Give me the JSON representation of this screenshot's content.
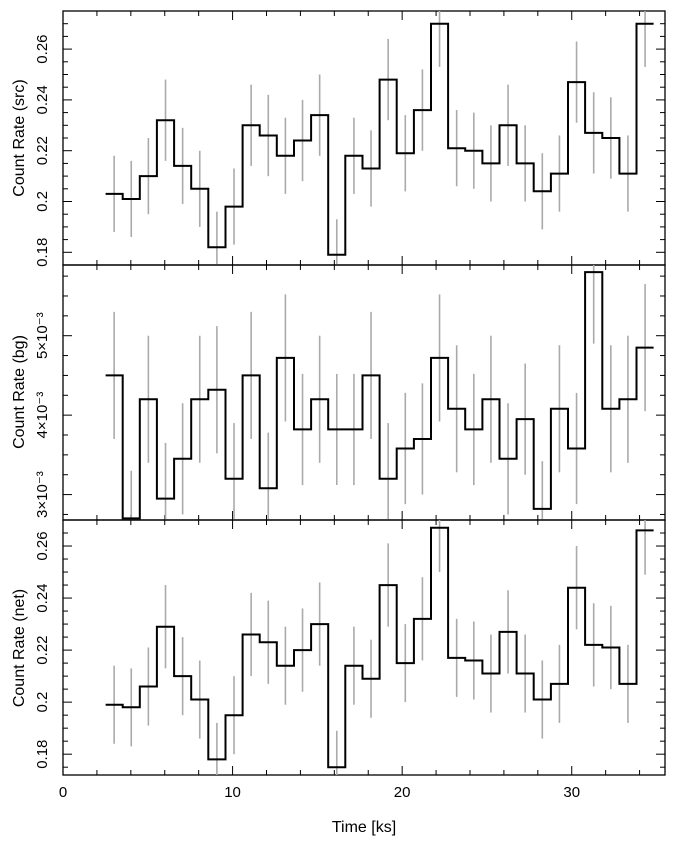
{
  "chart_data": {
    "type": "line",
    "xlabel": "Time [ks]",
    "xlim": [
      0,
      35.5
    ],
    "xticks": [
      "0",
      "10",
      "20",
      "30"
    ],
    "x": [
      2.51,
      3.52,
      4.53,
      5.54,
      6.55,
      7.56,
      8.57,
      9.58,
      10.59,
      11.6,
      12.61,
      13.62,
      14.63,
      15.64,
      16.65,
      17.66,
      18.67,
      19.68,
      20.69,
      21.7,
      22.71,
      23.72,
      24.73,
      25.74,
      26.75,
      27.76,
      28.77,
      29.78,
      30.79,
      31.8,
      32.81,
      33.82,
      34.83
    ],
    "bin_width": 1.01,
    "panels": [
      {
        "name": "src",
        "ylabel": "Count Rate (src)",
        "ylim": [
          0.175,
          0.275
        ],
        "yticks": [
          "0.18",
          "0.2",
          "0.22",
          "0.24",
          "0.26"
        ],
        "values": [
          0.203,
          0.201,
          0.21,
          0.232,
          0.214,
          0.205,
          0.182,
          0.198,
          0.23,
          0.226,
          0.218,
          0.224,
          0.234,
          0.179,
          0.218,
          0.213,
          0.248,
          0.219,
          0.236,
          0.27,
          0.221,
          0.22,
          0.215,
          0.23,
          0.215,
          0.204,
          0.211,
          0.247,
          0.227,
          0.225,
          0.211,
          0.27
        ],
        "errors": [
          0.015,
          0.015,
          0.015,
          0.016,
          0.015,
          0.015,
          0.014,
          0.015,
          0.016,
          0.016,
          0.015,
          0.016,
          0.016,
          0.014,
          0.015,
          0.015,
          0.016,
          0.015,
          0.016,
          0.017,
          0.015,
          0.015,
          0.015,
          0.016,
          0.015,
          0.015,
          0.015,
          0.016,
          0.016,
          0.016,
          0.015,
          0.017
        ]
      },
      {
        "name": "bg",
        "ylabel": "Count Rate (bg)",
        "ylim": [
          0.00268,
          0.00589
        ],
        "yticks": [
          "3×10⁻³",
          "4×10⁻³",
          "5×10⁻³"
        ],
        "values": [
          0.0045,
          0.0027,
          0.0042,
          0.00295,
          0.00345,
          0.0042,
          0.00432,
          0.0032,
          0.0045,
          0.00308,
          0.00472,
          0.00382,
          0.0042,
          0.00382,
          0.00382,
          0.0045,
          0.0032,
          0.00358,
          0.0037,
          0.00472,
          0.00408,
          0.00382,
          0.0042,
          0.00345,
          0.00395,
          0.00282,
          0.00408,
          0.00358,
          0.0058,
          0.00408,
          0.0042,
          0.00485
        ],
        "errors": [
          0.0008,
          0.0006,
          0.0008,
          0.0007,
          0.0007,
          0.0008,
          0.0008,
          0.0007,
          0.0008,
          0.0007,
          0.0008,
          0.0007,
          0.0008,
          0.0007,
          0.0007,
          0.0008,
          0.0007,
          0.0007,
          0.0007,
          0.0008,
          0.0008,
          0.0007,
          0.0008,
          0.0007,
          0.0007,
          0.0006,
          0.0008,
          0.0007,
          0.0009,
          0.0008,
          0.0008,
          0.0008
        ]
      },
      {
        "name": "net",
        "ylabel": "Count Rate (net)",
        "ylim": [
          0.172,
          0.27
        ],
        "yticks": [
          "0.18",
          "0.2",
          "0.22",
          "0.24",
          "0.26"
        ],
        "values": [
          0.199,
          0.198,
          0.206,
          0.229,
          0.21,
          0.201,
          0.178,
          0.195,
          0.226,
          0.223,
          0.214,
          0.22,
          0.23,
          0.175,
          0.214,
          0.209,
          0.245,
          0.215,
          0.232,
          0.267,
          0.217,
          0.216,
          0.211,
          0.227,
          0.211,
          0.201,
          0.207,
          0.244,
          0.222,
          0.221,
          0.207,
          0.266
        ],
        "errors": [
          0.015,
          0.015,
          0.015,
          0.016,
          0.015,
          0.015,
          0.014,
          0.015,
          0.016,
          0.016,
          0.015,
          0.016,
          0.016,
          0.014,
          0.015,
          0.015,
          0.016,
          0.015,
          0.016,
          0.017,
          0.015,
          0.015,
          0.015,
          0.016,
          0.015,
          0.015,
          0.015,
          0.016,
          0.016,
          0.016,
          0.015,
          0.017
        ]
      }
    ]
  }
}
